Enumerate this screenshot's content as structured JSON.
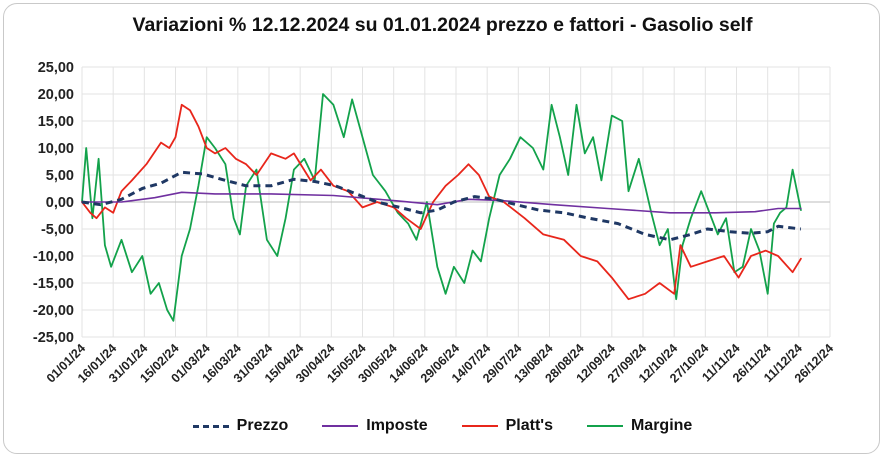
{
  "chart_data": {
    "type": "line",
    "title": "Variazioni % 12.12.2024 su 01.01.2024 prezzo e fattori - Gasolio self",
    "ylim": [
      -25,
      25
    ],
    "y_ticks": [
      "25,00",
      "20,00",
      "15,00",
      "10,00",
      "5,00",
      "0,00",
      "-5,00",
      "-10,00",
      "-15,00",
      "-20,00",
      "-25,00"
    ],
    "x_range": [
      "2024-01-01",
      "2024-12-26"
    ],
    "x_ticks": [
      "01/01/24",
      "16/01/24",
      "31/01/24",
      "15/02/24",
      "01/03/24",
      "16/03/24",
      "31/03/24",
      "15/04/24",
      "30/04/24",
      "15/05/24",
      "30/05/24",
      "14/06/24",
      "29/06/24",
      "14/07/24",
      "29/07/24",
      "13/08/24",
      "28/08/24",
      "12/09/24",
      "27/09/24",
      "12/10/24",
      "27/10/24",
      "11/11/24",
      "26/11/24",
      "11/12/24",
      "26/12/24"
    ],
    "grid": true,
    "legend_position": "bottom",
    "series": [
      {
        "name": "Prezzo",
        "color": "#1f3864",
        "dash": "dashed",
        "points": [
          [
            "2024-01-01",
            0
          ],
          [
            "2024-01-10",
            -0.5
          ],
          [
            "2024-01-20",
            0.5
          ],
          [
            "2024-01-30",
            2.5
          ],
          [
            "2024-02-08",
            3.5
          ],
          [
            "2024-02-18",
            5.5
          ],
          [
            "2024-02-28",
            5.2
          ],
          [
            "2024-03-10",
            4
          ],
          [
            "2024-03-20",
            3
          ],
          [
            "2024-04-01",
            3
          ],
          [
            "2024-04-12",
            4.2
          ],
          [
            "2024-04-22",
            3.8
          ],
          [
            "2024-05-02",
            3
          ],
          [
            "2024-05-12",
            1.5
          ],
          [
            "2024-05-22",
            0
          ],
          [
            "2024-06-02",
            -1
          ],
          [
            "2024-06-12",
            -2
          ],
          [
            "2024-06-20",
            -1.5
          ],
          [
            "2024-06-28",
            0
          ],
          [
            "2024-07-08",
            1
          ],
          [
            "2024-07-18",
            0.5
          ],
          [
            "2024-07-28",
            -0.5
          ],
          [
            "2024-08-08",
            -1.5
          ],
          [
            "2024-08-20",
            -2
          ],
          [
            "2024-09-01",
            -3
          ],
          [
            "2024-09-15",
            -4
          ],
          [
            "2024-09-28",
            -6
          ],
          [
            "2024-10-10",
            -7
          ],
          [
            "2024-10-20",
            -6
          ],
          [
            "2024-10-28",
            -5
          ],
          [
            "2024-11-08",
            -5.5
          ],
          [
            "2024-11-18",
            -5.8
          ],
          [
            "2024-11-26",
            -5.5
          ],
          [
            "2024-12-01",
            -4.5
          ],
          [
            "2024-12-12",
            -5
          ]
        ]
      },
      {
        "name": "Imposte",
        "color": "#7030a0",
        "dash": "solid",
        "points": [
          [
            "2024-01-01",
            0
          ],
          [
            "2024-01-20",
            0
          ],
          [
            "2024-02-05",
            0.8
          ],
          [
            "2024-02-18",
            1.8
          ],
          [
            "2024-03-05",
            1.5
          ],
          [
            "2024-04-01",
            1.5
          ],
          [
            "2024-05-01",
            1.2
          ],
          [
            "2024-06-01",
            0.2
          ],
          [
            "2024-06-20",
            -0.5
          ],
          [
            "2024-07-05",
            0.5
          ],
          [
            "2024-07-20",
            0.3
          ],
          [
            "2024-08-15",
            -0.5
          ],
          [
            "2024-09-10",
            -1.2
          ],
          [
            "2024-10-10",
            -2
          ],
          [
            "2024-11-01",
            -2
          ],
          [
            "2024-11-20",
            -1.8
          ],
          [
            "2024-12-01",
            -1.2
          ],
          [
            "2024-12-12",
            -1.2
          ]
        ]
      },
      {
        "name": "Platt's",
        "color": "#e8261b",
        "dash": "solid",
        "points": [
          [
            "2024-01-01",
            0
          ],
          [
            "2024-01-05",
            -2
          ],
          [
            "2024-01-08",
            -3
          ],
          [
            "2024-01-12",
            -1
          ],
          [
            "2024-01-16",
            -2
          ],
          [
            "2024-01-20",
            2
          ],
          [
            "2024-01-25",
            4
          ],
          [
            "2024-02-01",
            7
          ],
          [
            "2024-02-08",
            11
          ],
          [
            "2024-02-12",
            10
          ],
          [
            "2024-02-15",
            12
          ],
          [
            "2024-02-18",
            18
          ],
          [
            "2024-02-22",
            17
          ],
          [
            "2024-02-26",
            14
          ],
          [
            "2024-03-01",
            10
          ],
          [
            "2024-03-05",
            9
          ],
          [
            "2024-03-10",
            10
          ],
          [
            "2024-03-15",
            8
          ],
          [
            "2024-03-20",
            7
          ],
          [
            "2024-03-25",
            5
          ],
          [
            "2024-04-01",
            9
          ],
          [
            "2024-04-08",
            8
          ],
          [
            "2024-04-12",
            9
          ],
          [
            "2024-04-20",
            4
          ],
          [
            "2024-04-25",
            6
          ],
          [
            "2024-05-01",
            3
          ],
          [
            "2024-05-08",
            2
          ],
          [
            "2024-05-15",
            -1
          ],
          [
            "2024-05-22",
            0
          ],
          [
            "2024-05-30",
            -1
          ],
          [
            "2024-06-05",
            -3
          ],
          [
            "2024-06-12",
            -5
          ],
          [
            "2024-06-18",
            0
          ],
          [
            "2024-06-24",
            3
          ],
          [
            "2024-06-30",
            5
          ],
          [
            "2024-07-05",
            7
          ],
          [
            "2024-07-10",
            5
          ],
          [
            "2024-07-15",
            1
          ],
          [
            "2024-07-22",
            0
          ],
          [
            "2024-08-01",
            -3
          ],
          [
            "2024-08-10",
            -6
          ],
          [
            "2024-08-20",
            -7
          ],
          [
            "2024-08-28",
            -10
          ],
          [
            "2024-09-05",
            -11
          ],
          [
            "2024-09-12",
            -14
          ],
          [
            "2024-09-20",
            -18
          ],
          [
            "2024-09-28",
            -17
          ],
          [
            "2024-10-05",
            -15
          ],
          [
            "2024-10-12",
            -17
          ],
          [
            "2024-10-15",
            -8
          ],
          [
            "2024-10-20",
            -12
          ],
          [
            "2024-10-28",
            -11
          ],
          [
            "2024-11-05",
            -10
          ],
          [
            "2024-11-12",
            -14
          ],
          [
            "2024-11-18",
            -10
          ],
          [
            "2024-11-25",
            -9
          ],
          [
            "2024-12-01",
            -10
          ],
          [
            "2024-12-08",
            -13
          ],
          [
            "2024-12-12",
            -10.5
          ]
        ]
      },
      {
        "name": "Margine",
        "color": "#13a24b",
        "dash": "solid",
        "points": [
          [
            "2024-01-01",
            0
          ],
          [
            "2024-01-03",
            10
          ],
          [
            "2024-01-06",
            -3
          ],
          [
            "2024-01-09",
            8
          ],
          [
            "2024-01-12",
            -8
          ],
          [
            "2024-01-15",
            -12
          ],
          [
            "2024-01-20",
            -7
          ],
          [
            "2024-01-25",
            -13
          ],
          [
            "2024-01-30",
            -10
          ],
          [
            "2024-02-03",
            -17
          ],
          [
            "2024-02-07",
            -15
          ],
          [
            "2024-02-11",
            -20
          ],
          [
            "2024-02-14",
            -22
          ],
          [
            "2024-02-18",
            -10
          ],
          [
            "2024-02-22",
            -5
          ],
          [
            "2024-02-26",
            3
          ],
          [
            "2024-03-01",
            12
          ],
          [
            "2024-03-05",
            10
          ],
          [
            "2024-03-10",
            7
          ],
          [
            "2024-03-14",
            -3
          ],
          [
            "2024-03-17",
            -6
          ],
          [
            "2024-03-20",
            3
          ],
          [
            "2024-03-25",
            6
          ],
          [
            "2024-03-30",
            -7
          ],
          [
            "2024-04-04",
            -10
          ],
          [
            "2024-04-08",
            -3
          ],
          [
            "2024-04-12",
            6
          ],
          [
            "2024-04-17",
            8
          ],
          [
            "2024-04-22",
            4
          ],
          [
            "2024-04-26",
            20
          ],
          [
            "2024-05-01",
            18
          ],
          [
            "2024-05-06",
            12
          ],
          [
            "2024-05-10",
            19
          ],
          [
            "2024-05-15",
            12
          ],
          [
            "2024-05-20",
            5
          ],
          [
            "2024-05-26",
            2
          ],
          [
            "2024-06-01",
            -2
          ],
          [
            "2024-06-06",
            -4
          ],
          [
            "2024-06-10",
            -7
          ],
          [
            "2024-06-15",
            0
          ],
          [
            "2024-06-20",
            -12
          ],
          [
            "2024-06-24",
            -17
          ],
          [
            "2024-06-28",
            -12
          ],
          [
            "2024-07-03",
            -15
          ],
          [
            "2024-07-07",
            -9
          ],
          [
            "2024-07-11",
            -11
          ],
          [
            "2024-07-15",
            -3
          ],
          [
            "2024-07-20",
            5
          ],
          [
            "2024-07-25",
            8
          ],
          [
            "2024-07-30",
            12
          ],
          [
            "2024-08-05",
            10
          ],
          [
            "2024-08-10",
            6
          ],
          [
            "2024-08-14",
            18
          ],
          [
            "2024-08-18",
            12
          ],
          [
            "2024-08-22",
            5
          ],
          [
            "2024-08-26",
            18
          ],
          [
            "2024-08-30",
            9
          ],
          [
            "2024-09-03",
            12
          ],
          [
            "2024-09-07",
            4
          ],
          [
            "2024-09-12",
            16
          ],
          [
            "2024-09-17",
            15
          ],
          [
            "2024-09-20",
            2
          ],
          [
            "2024-09-25",
            8
          ],
          [
            "2024-10-01",
            -2
          ],
          [
            "2024-10-05",
            -8
          ],
          [
            "2024-10-09",
            -5
          ],
          [
            "2024-10-13",
            -18
          ],
          [
            "2024-10-16",
            -8
          ],
          [
            "2024-10-20",
            -3
          ],
          [
            "2024-10-25",
            2
          ],
          [
            "2024-10-29",
            -2
          ],
          [
            "2024-11-02",
            -6
          ],
          [
            "2024-11-06",
            -3
          ],
          [
            "2024-11-10",
            -13
          ],
          [
            "2024-11-14",
            -12
          ],
          [
            "2024-11-18",
            -5
          ],
          [
            "2024-11-22",
            -9
          ],
          [
            "2024-11-26",
            -17
          ],
          [
            "2024-11-29",
            -4
          ],
          [
            "2024-12-02",
            -2
          ],
          [
            "2024-12-05",
            -1
          ],
          [
            "2024-12-08",
            6
          ],
          [
            "2024-12-12",
            -1.5
          ]
        ]
      }
    ]
  }
}
